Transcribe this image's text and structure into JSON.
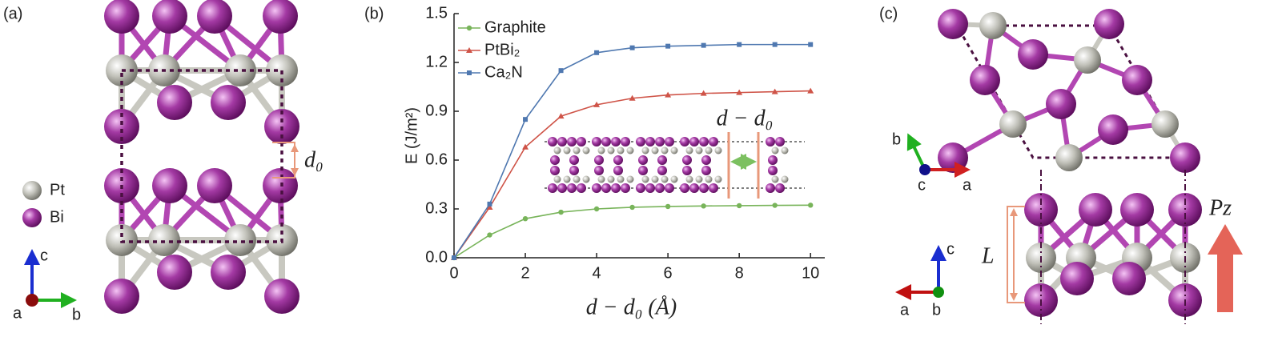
{
  "panel_a": {
    "label": "(a)",
    "legend": [
      "Pt",
      "Bi"
    ],
    "axes": [
      "c",
      "a",
      "b"
    ],
    "spacing": "d₀"
  },
  "chart_data": {
    "type": "line",
    "panel_label": "(b)",
    "x_label": "d − d₀ (Å)",
    "y_label": "E (J/m²)",
    "inset_label": "d − d₀",
    "x": [
      0,
      1,
      2,
      3,
      4,
      5,
      6,
      7,
      8,
      9,
      10
    ],
    "series": [
      {
        "name": "Graphite",
        "color": "#78b45a",
        "marker": "circle",
        "values": [
          0,
          0.14,
          0.24,
          0.28,
          0.3,
          0.31,
          0.315,
          0.318,
          0.32,
          0.322,
          0.323
        ]
      },
      {
        "name": "PtBi₂",
        "color": "#cf5448",
        "marker": "triangle",
        "values": [
          0,
          0.31,
          0.68,
          0.87,
          0.94,
          0.98,
          1.0,
          1.01,
          1.015,
          1.02,
          1.025
        ]
      },
      {
        "name": "Ca₂N",
        "color": "#4f78b0",
        "marker": "square",
        "values": [
          0,
          0.33,
          0.85,
          1.15,
          1.26,
          1.29,
          1.3,
          1.305,
          1.31,
          1.31,
          1.31
        ]
      }
    ],
    "xlim": [
      0,
      10.4
    ],
    "xticks": [
      0,
      2,
      4,
      6,
      8,
      10
    ],
    "ylim": [
      0,
      1.5
    ],
    "yticks": [
      {
        "value": 0,
        "label": "0.0"
      },
      0.3,
      0.6,
      0.9,
      1.2,
      1.5
    ],
    "legend": "upper left"
  },
  "panel_c": {
    "label": "(c)",
    "top_axes": [
      "b",
      "c",
      "a"
    ],
    "side_axes": [
      "c",
      "a",
      "b"
    ],
    "thickness": "L",
    "polarization": "Pz"
  }
}
